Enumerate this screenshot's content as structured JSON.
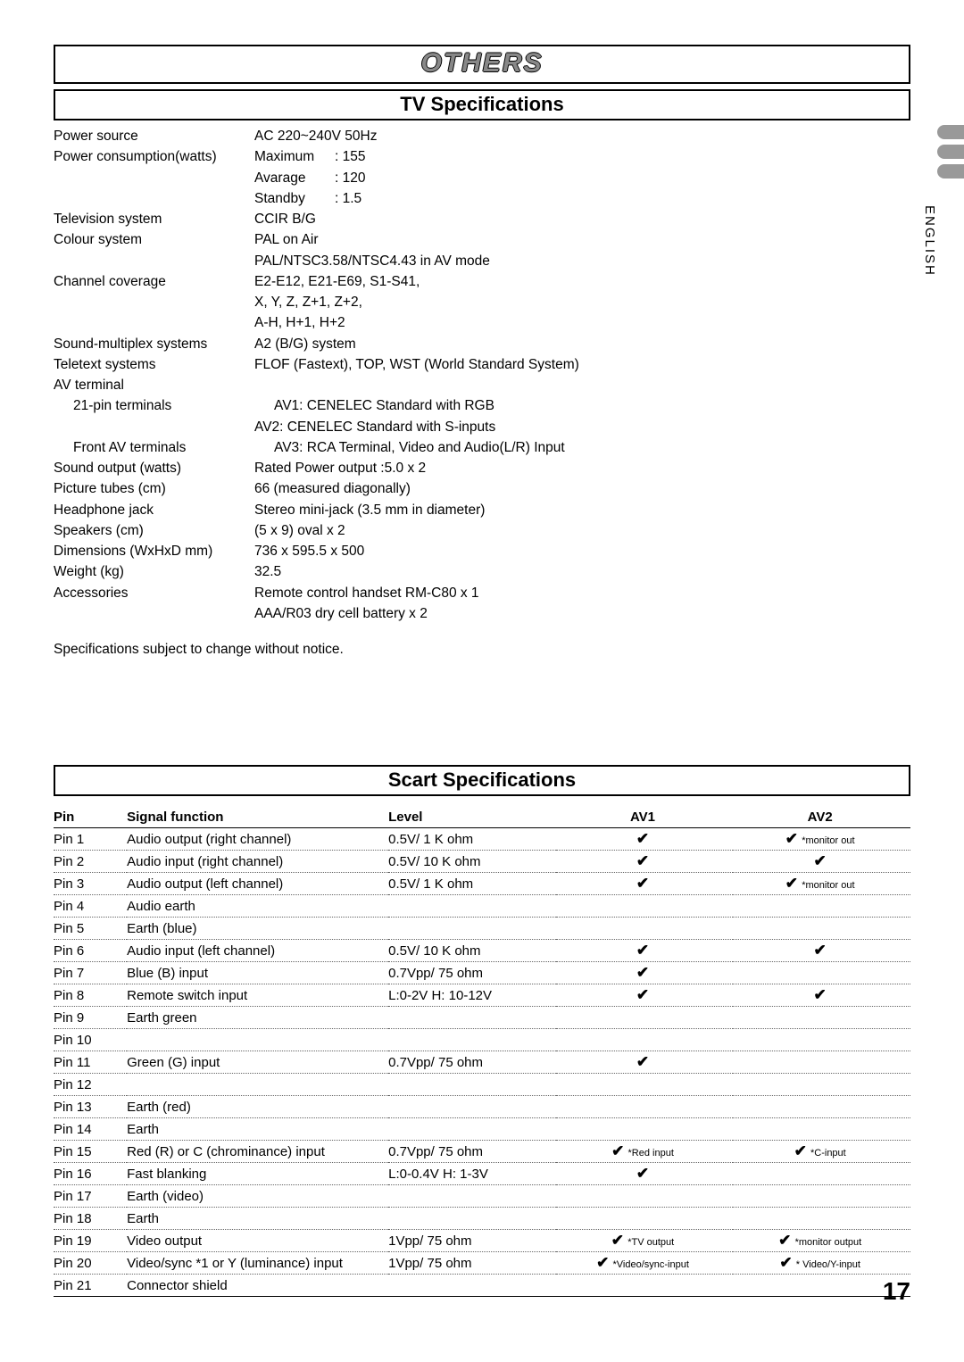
{
  "main_title": "OTHERS",
  "tv_spec_title": "TV Specifications",
  "language_tag": "ENGLISH",
  "tv_specs": [
    {
      "label": "Power source",
      "value": "AC 220~240V 50Hz"
    },
    {
      "label": "Power consumption(watts)",
      "subs": [
        {
          "k": "Maximum",
          "v": ": 155"
        },
        {
          "k": "Avarage",
          "v": ": 120"
        },
        {
          "k": "Standby",
          "v": ": 1.5"
        }
      ]
    },
    {
      "label": "Television system",
      "value": "CCIR B/G"
    },
    {
      "label": "Colour system",
      "values": [
        "PAL on Air",
        "PAL/NTSC3.58/NTSC4.43 in AV mode"
      ]
    },
    {
      "label": "Channel coverage",
      "values": [
        "E2-E12, E21-E69, S1-S41,",
        "X, Y, Z, Z+1, Z+2,",
        "A-H, H+1, H+2"
      ]
    },
    {
      "label": "Sound-multiplex systems",
      "value": "A2 (B/G) system"
    },
    {
      "label": "Teletext systems",
      "value": "FLOF (Fastext), TOP, WST (World Standard System)"
    },
    {
      "label": "AV terminal",
      "value": ""
    },
    {
      "label": "21-pin terminals",
      "indent": true,
      "values": [
        "AV1: CENELEC Standard with RGB",
        "AV2: CENELEC Standard with S-inputs"
      ]
    },
    {
      "label": "Front AV terminals",
      "indent": true,
      "value": "AV3: RCA Terminal, Video and Audio(L/R) Input"
    },
    {
      "label": "Sound output (watts)",
      "value": "Rated Power output :5.0 x 2"
    },
    {
      "label": "Picture tubes (cm)",
      "value": "66 (measured diagonally)"
    },
    {
      "label": "Headphone jack",
      "value": "Stereo mini-jack (3.5 mm in diameter)"
    },
    {
      "label": "Speakers (cm)",
      "value": "(5 x 9) oval x 2"
    },
    {
      "label": "Dimensions (WxHxD mm)",
      "value": "736 x 595.5 x 500"
    },
    {
      "label": "Weight (kg)",
      "value": "32.5"
    },
    {
      "label": "Accessories",
      "values": [
        "Remote control handset RM-C80 x 1",
        "AAA/R03 dry cell battery x 2"
      ]
    }
  ],
  "notice": "Specifications subject to change without notice.",
  "scart_title": "Scart Specifications",
  "scart_headers": {
    "pin": "Pin",
    "func": "Signal function",
    "level": "Level",
    "av1": "AV1",
    "av2": "AV2"
  },
  "scart_rows": [
    {
      "pin": "Pin 1",
      "func": "Audio output (right channel)",
      "level": "0.5V/ 1 K ohm",
      "av1": {
        "c": true
      },
      "av2": {
        "c": true,
        "n": "*monitor out"
      }
    },
    {
      "pin": "Pin 2",
      "func": "Audio input (right channel)",
      "level": "0.5V/ 10 K ohm",
      "av1": {
        "c": true
      },
      "av2": {
        "c": true
      }
    },
    {
      "pin": "Pin 3",
      "func": "Audio output (left channel)",
      "level": "0.5V/ 1 K ohm",
      "av1": {
        "c": true
      },
      "av2": {
        "c": true,
        "n": "*monitor out"
      }
    },
    {
      "pin": "Pin 4",
      "func": "Audio earth",
      "level": "",
      "av1": {},
      "av2": {}
    },
    {
      "pin": "Pin 5",
      "func": "Earth (blue)",
      "level": "",
      "av1": {},
      "av2": {}
    },
    {
      "pin": "Pin 6",
      "func": "Audio input (left channel)",
      "level": "0.5V/ 10 K ohm",
      "av1": {
        "c": true
      },
      "av2": {
        "c": true
      }
    },
    {
      "pin": "Pin 7",
      "func": "Blue (B) input",
      "level": "0.7Vpp/ 75 ohm",
      "av1": {
        "c": true
      },
      "av2": {}
    },
    {
      "pin": "Pin 8",
      "func": "Remote switch input",
      "level": "L:0-2V H: 10-12V",
      "av1": {
        "c": true
      },
      "av2": {
        "c": true
      }
    },
    {
      "pin": "Pin 9",
      "func": "Earth green",
      "level": "",
      "av1": {},
      "av2": {}
    },
    {
      "pin": "Pin 10",
      "func": "",
      "level": "",
      "av1": {},
      "av2": {}
    },
    {
      "pin": "Pin 11",
      "func": "Green (G) input",
      "level": "0.7Vpp/ 75 ohm",
      "av1": {
        "c": true
      },
      "av2": {}
    },
    {
      "pin": "Pin 12",
      "func": "",
      "level": "",
      "av1": {},
      "av2": {}
    },
    {
      "pin": "Pin 13",
      "func": "Earth (red)",
      "level": "",
      "av1": {},
      "av2": {}
    },
    {
      "pin": "Pin 14",
      "func": "Earth",
      "level": "",
      "av1": {},
      "av2": {}
    },
    {
      "pin": "Pin 15",
      "func": "Red (R) or C (chrominance) input",
      "level": "0.7Vpp/ 75 ohm",
      "av1": {
        "c": true,
        "n": "*Red input"
      },
      "av2": {
        "c": true,
        "n": "*C-input"
      }
    },
    {
      "pin": "Pin 16",
      "func": "Fast blanking",
      "level": "L:0-0.4V H: 1-3V",
      "av1": {
        "c": true
      },
      "av2": {}
    },
    {
      "pin": "Pin 17",
      "func": "Earth (video)",
      "level": "",
      "av1": {},
      "av2": {}
    },
    {
      "pin": "Pin 18",
      "func": "Earth",
      "level": "",
      "av1": {},
      "av2": {}
    },
    {
      "pin": "Pin 19",
      "func": "Video output",
      "level": "1Vpp/ 75 ohm",
      "av1": {
        "c": true,
        "n": "*TV output"
      },
      "av2": {
        "c": true,
        "n": "*monitor output"
      }
    },
    {
      "pin": "Pin 20",
      "func": "Video/sync *1 or Y (luminance) input",
      "level": "1Vpp/ 75 ohm",
      "av1": {
        "c": true,
        "n": "*Video/sync-input"
      },
      "av2": {
        "c": true,
        "n": "* Video/Y-input"
      }
    },
    {
      "pin": "Pin 21",
      "func": "Connector shield",
      "level": "",
      "av1": {},
      "av2": {}
    }
  ],
  "page_number": "17"
}
